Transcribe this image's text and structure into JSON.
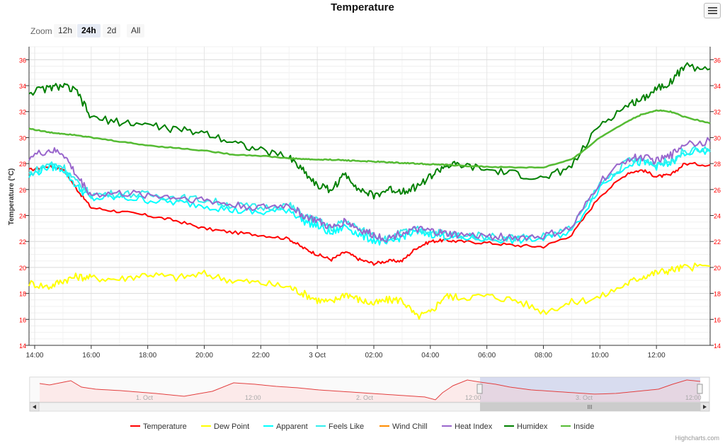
{
  "title": "Temperature",
  "menu_icon": "hamburger-icon",
  "zoom": {
    "label": "Zoom",
    "buttons": [
      "12h",
      "24h",
      "2d",
      "All"
    ],
    "selected": "24h"
  },
  "credits": "Highcharts.com",
  "navigator": {
    "labels": [
      "1. Oct",
      "12:00",
      "2. Oct",
      "12:00",
      "3. Oct",
      "12:00"
    ],
    "scroll_grip": "III"
  },
  "chart_data": {
    "type": "line",
    "title": "Temperature",
    "ylabel": "Temperature (°C)",
    "ylim": [
      14,
      37
    ],
    "yticks": [
      14,
      16,
      18,
      20,
      22,
      24,
      26,
      28,
      30,
      32,
      34,
      36
    ],
    "x_tick_labels": [
      "14:00",
      "16:00",
      "18:00",
      "20:00",
      "22:00",
      "3 Oct",
      "02:00",
      "04:00",
      "06:00",
      "08:00",
      "10:00",
      "12:00"
    ],
    "x_ticks_hours": [
      14,
      16,
      18,
      20,
      22,
      24,
      26,
      28,
      30,
      32,
      34,
      36
    ],
    "xlim_hours": [
      13.8,
      37.9
    ],
    "grid": true,
    "legend_position": "bottom",
    "x_hours": [
      13.8,
      14.5,
      15,
      15.5,
      16,
      17,
      18,
      19,
      20,
      21,
      22,
      23,
      23.5,
      24,
      24.5,
      25,
      25.5,
      26,
      26.5,
      27,
      27.5,
      28,
      28.5,
      29,
      30,
      31,
      32,
      33,
      34,
      35,
      35.5,
      36,
      36.5,
      37,
      37.9
    ],
    "series": [
      {
        "name": "Temperature",
        "color": "#ff0000",
        "values": [
          27.5,
          27.8,
          27.6,
          26,
          24.6,
          24.3,
          24,
          23.6,
          23,
          22.7,
          22.5,
          22.2,
          21.5,
          21,
          20.6,
          21.2,
          20.6,
          20.3,
          20.5,
          20.5,
          21.5,
          22,
          22.1,
          22,
          21.9,
          21.7,
          21.6,
          22.5,
          25.5,
          27.3,
          27.5,
          27,
          27.1,
          28,
          27.9
        ]
      },
      {
        "name": "Dew Point",
        "color": "#ffff00",
        "values": [
          18.8,
          18.5,
          19,
          19.3,
          19.2,
          19.1,
          19.5,
          19.2,
          19.5,
          19,
          18.8,
          18.5,
          18,
          17.5,
          17.3,
          18,
          17.5,
          17.2,
          17.5,
          17.5,
          16.2,
          16.5,
          17.8,
          17.7,
          17.8,
          17.5,
          16.6,
          17.3,
          17.7,
          18.8,
          19.3,
          19.6,
          19.8,
          20,
          20.1
        ]
      },
      {
        "name": "Apparent",
        "color": "#00ffff",
        "values": [
          27,
          27.8,
          27.6,
          26.2,
          25.3,
          25.4,
          25.2,
          25,
          24.8,
          24.4,
          24.2,
          24.5,
          23.6,
          23.2,
          22.6,
          23.2,
          22.5,
          22.1,
          21.8,
          22.4,
          22.7,
          22.6,
          22.4,
          22.3,
          22.2,
          22.1,
          22.2,
          22.8,
          26.2,
          28,
          28.1,
          27.8,
          28,
          28.8,
          28.9
        ]
      },
      {
        "name": "Feels Like",
        "color": "#33eeee",
        "values": [
          27.2,
          28,
          27.8,
          26.5,
          25.6,
          25.7,
          25.6,
          25.4,
          25.2,
          24.8,
          24.6,
          24.8,
          24,
          23.6,
          23,
          23.6,
          22.9,
          22.5,
          22.2,
          22.7,
          22.9,
          22.8,
          22.6,
          22.5,
          22.4,
          22.3,
          22.4,
          23,
          26.4,
          28.2,
          28.3,
          28,
          28.2,
          29,
          29.1
        ]
      },
      {
        "name": "Wind Chill",
        "color": "#ff8c00",
        "values": []
      },
      {
        "name": "Heat Index",
        "color": "#9966cc",
        "values": [
          28.5,
          29,
          28.8,
          27,
          25.6,
          25.7,
          25.6,
          25.4,
          25.2,
          24.8,
          24.6,
          24.8,
          24,
          23.6,
          23,
          23.6,
          22.9,
          22.5,
          22.2,
          22.7,
          22.9,
          22.8,
          22.6,
          22.5,
          22.4,
          22.3,
          22.4,
          23,
          26.6,
          28.4,
          28.5,
          28.2,
          28.6,
          29.6,
          29.7
        ]
      },
      {
        "name": "Humidex",
        "color": "#008000",
        "values": [
          33.5,
          33.8,
          34,
          33.5,
          31.5,
          31.2,
          31,
          30.6,
          30.4,
          29.7,
          29,
          28.5,
          27.5,
          26.3,
          26,
          27.2,
          26,
          25.5,
          26,
          25.9,
          26.2,
          27,
          27.8,
          27.9,
          27.5,
          27.2,
          26.8,
          27.8,
          31,
          32.5,
          33,
          33.8,
          34.3,
          35.5,
          35.3
        ]
      },
      {
        "name": "Inside",
        "color": "#55bb33",
        "values": [
          30.7,
          30.4,
          30.3,
          30.2,
          30,
          29.7,
          29.4,
          29.2,
          29,
          28.7,
          28.6,
          28.4,
          28.35,
          28.3,
          28.3,
          28.25,
          28.2,
          28.15,
          28.1,
          28.05,
          28,
          27.95,
          27.9,
          27.85,
          27.75,
          27.7,
          27.7,
          28.3,
          30,
          31.3,
          31.8,
          32.1,
          32,
          31.6,
          31.1
        ]
      }
    ]
  }
}
